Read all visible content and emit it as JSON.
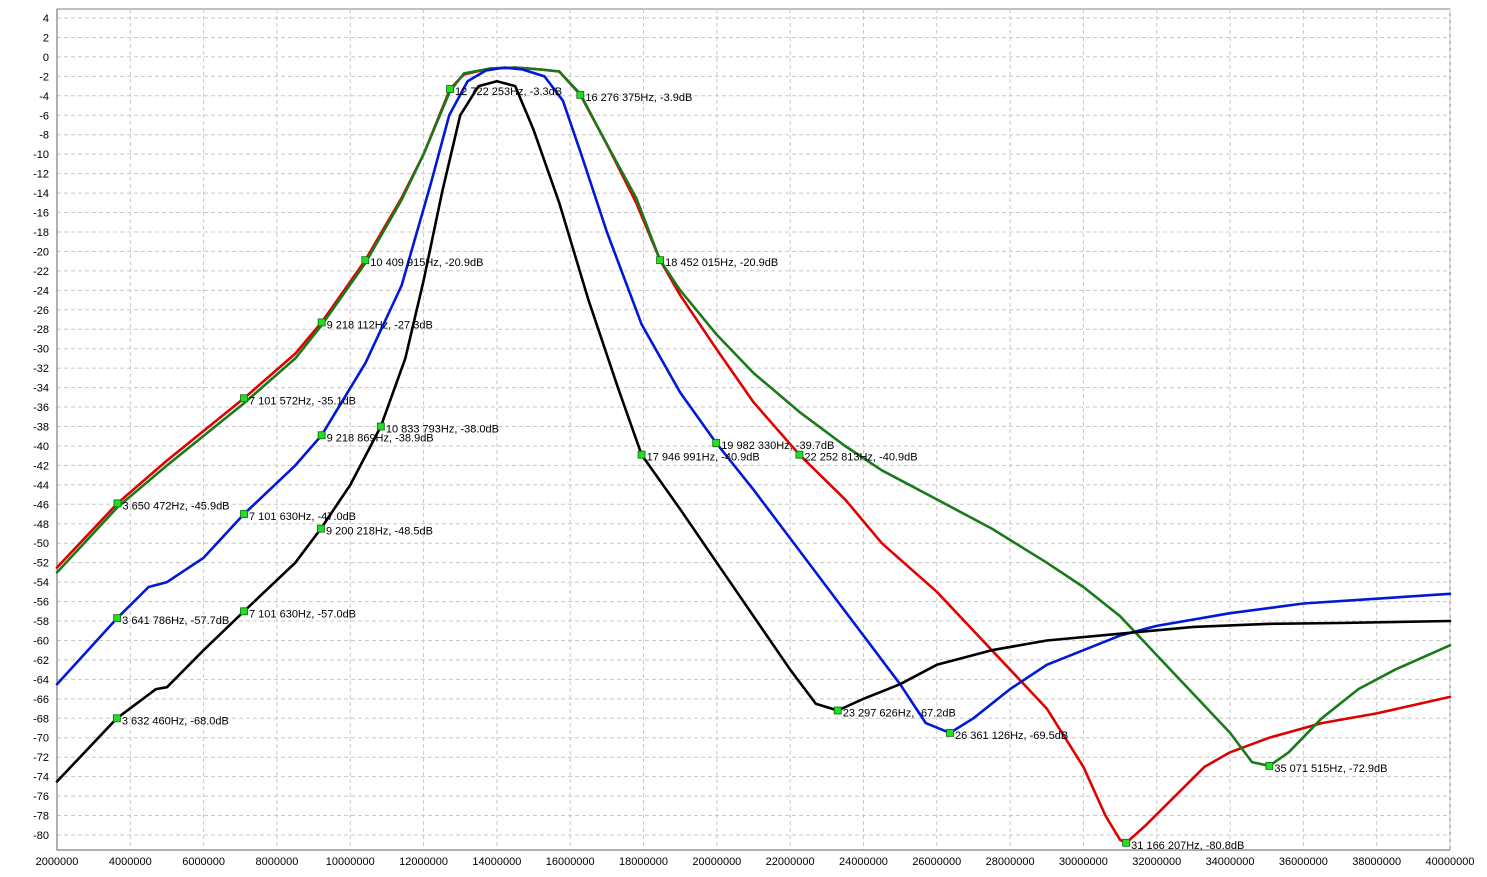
{
  "chart_data": {
    "type": "line",
    "xlim": [
      2000000,
      40000000
    ],
    "ylim": [
      -82,
      5
    ],
    "grid": true,
    "x_ticks": [
      2000000,
      4000000,
      6000000,
      8000000,
      10000000,
      12000000,
      14000000,
      16000000,
      18000000,
      20000000,
      22000000,
      24000000,
      26000000,
      28000000,
      30000000,
      32000000,
      34000000,
      36000000,
      38000000,
      40000000
    ],
    "y_ticks": [
      4,
      2,
      0,
      -2,
      -4,
      -6,
      -8,
      -10,
      -12,
      -14,
      -16,
      -18,
      -20,
      -22,
      -24,
      -26,
      -28,
      -30,
      -32,
      -34,
      -36,
      -38,
      -40,
      -42,
      -44,
      -46,
      -48,
      -50,
      -52,
      -54,
      -56,
      -58,
      -60,
      -62,
      -64,
      -66,
      -68,
      -70,
      -72,
      -74,
      -76,
      -78,
      -80
    ],
    "series": [
      {
        "color": "#e00000",
        "points": [
          [
            2000000,
            -52.5
          ],
          [
            3650472,
            -45.9
          ],
          [
            5000000,
            -41.5
          ],
          [
            7101572,
            -35.1
          ],
          [
            8500000,
            -30.5
          ],
          [
            9218112,
            -27.3
          ],
          [
            10409915,
            -20.9
          ],
          [
            11400000,
            -14.5
          ],
          [
            12000000,
            -10
          ],
          [
            12722253,
            -3.3
          ],
          [
            13100000,
            -1.8
          ],
          [
            13800000,
            -1.2
          ],
          [
            14500000,
            -1.1
          ],
          [
            15200000,
            -1.3
          ],
          [
            15700000,
            -1.5
          ],
          [
            16276375,
            -3.9
          ],
          [
            17000000,
            -9
          ],
          [
            17800000,
            -15
          ],
          [
            18452015,
            -20.9
          ],
          [
            19000000,
            -24.5
          ],
          [
            19982330,
            -30
          ],
          [
            21000000,
            -35.5
          ],
          [
            22252813,
            -40.9
          ],
          [
            23500000,
            -45.5
          ],
          [
            24500000,
            -50
          ],
          [
            26000000,
            -55
          ],
          [
            27500000,
            -61
          ],
          [
            29000000,
            -67
          ],
          [
            30000000,
            -73
          ],
          [
            30600000,
            -78
          ],
          [
            31000000,
            -80.5
          ],
          [
            31166207,
            -80.8
          ],
          [
            31700000,
            -79
          ],
          [
            32500000,
            -76
          ],
          [
            33300000,
            -73
          ],
          [
            34000000,
            -71.5
          ],
          [
            35071515,
            -70
          ],
          [
            36500000,
            -68.5
          ],
          [
            38000000,
            -67.5
          ],
          [
            40000000,
            -65.8
          ]
        ]
      },
      {
        "color": "#1a7a1a",
        "points": [
          [
            2000000,
            -53
          ],
          [
            3650472,
            -46.3
          ],
          [
            5000000,
            -42
          ],
          [
            7101572,
            -35.6
          ],
          [
            8500000,
            -31
          ],
          [
            9218112,
            -27.6
          ],
          [
            10409915,
            -21.2
          ],
          [
            11400000,
            -14.7
          ],
          [
            12000000,
            -10
          ],
          [
            12722253,
            -3.5
          ],
          [
            13100000,
            -1.7
          ],
          [
            13800000,
            -1.2
          ],
          [
            14500000,
            -1.1
          ],
          [
            15200000,
            -1.3
          ],
          [
            15700000,
            -1.5
          ],
          [
            16276375,
            -3.8
          ],
          [
            17000000,
            -9
          ],
          [
            17800000,
            -14.5
          ],
          [
            18452015,
            -20.9
          ],
          [
            19000000,
            -24
          ],
          [
            19982330,
            -28.5
          ],
          [
            21000000,
            -32.5
          ],
          [
            22252813,
            -36.5
          ],
          [
            23500000,
            -40
          ],
          [
            24500000,
            -42.5
          ],
          [
            26000000,
            -45.5
          ],
          [
            27500000,
            -48.5
          ],
          [
            29000000,
            -52
          ],
          [
            30000000,
            -54.5
          ],
          [
            31000000,
            -57.5
          ],
          [
            32000000,
            -61.5
          ],
          [
            33000000,
            -65.5
          ],
          [
            34000000,
            -69.5
          ],
          [
            34600000,
            -72.5
          ],
          [
            35071515,
            -72.9
          ],
          [
            35600000,
            -71.5
          ],
          [
            36500000,
            -68
          ],
          [
            37500000,
            -65
          ],
          [
            38500000,
            -63
          ],
          [
            40000000,
            -60.5
          ]
        ]
      },
      {
        "color": "#0018d8",
        "points": [
          [
            2000000,
            -64.5
          ],
          [
            3641786,
            -57.7
          ],
          [
            4500000,
            -54.5
          ],
          [
            5000000,
            -54
          ],
          [
            6000000,
            -51.5
          ],
          [
            7101630,
            -47
          ],
          [
            8500000,
            -42
          ],
          [
            9218869,
            -38.9
          ],
          [
            10409915,
            -31.5
          ],
          [
            11400000,
            -23.5
          ],
          [
            12200000,
            -13
          ],
          [
            12700000,
            -6
          ],
          [
            13200000,
            -2.5
          ],
          [
            13700000,
            -1.4
          ],
          [
            14200000,
            -1.1
          ],
          [
            14700000,
            -1.3
          ],
          [
            15300000,
            -2
          ],
          [
            15800000,
            -4.5
          ],
          [
            16300000,
            -10
          ],
          [
            17000000,
            -18
          ],
          [
            17946991,
            -27.5
          ],
          [
            19000000,
            -34.5
          ],
          [
            19982330,
            -39.7
          ],
          [
            21000000,
            -44.5
          ],
          [
            22000000,
            -49.5
          ],
          [
            23000000,
            -54.5
          ],
          [
            24000000,
            -59.5
          ],
          [
            25000000,
            -64.5
          ],
          [
            25700000,
            -68.5
          ],
          [
            26361126,
            -69.5
          ],
          [
            27000000,
            -68
          ],
          [
            28000000,
            -65
          ],
          [
            29000000,
            -62.5
          ],
          [
            30000000,
            -61
          ],
          [
            31000000,
            -59.5
          ],
          [
            32000000,
            -58.5
          ],
          [
            34000000,
            -57.2
          ],
          [
            36000000,
            -56.2
          ],
          [
            38000000,
            -55.7
          ],
          [
            40000000,
            -55.2
          ]
        ]
      },
      {
        "color": "#000000",
        "points": [
          [
            2000000,
            -74.5
          ],
          [
            3632460,
            -68
          ],
          [
            4700000,
            -65
          ],
          [
            5000000,
            -64.8
          ],
          [
            6000000,
            -61
          ],
          [
            7101630,
            -57
          ],
          [
            8500000,
            -52
          ],
          [
            9200218,
            -48.5
          ],
          [
            10000000,
            -44
          ],
          [
            10833793,
            -38
          ],
          [
            11500000,
            -31
          ],
          [
            12000000,
            -23
          ],
          [
            12500000,
            -14
          ],
          [
            13000000,
            -6
          ],
          [
            13500000,
            -3
          ],
          [
            14000000,
            -2.5
          ],
          [
            14500000,
            -3
          ],
          [
            15000000,
            -7.5
          ],
          [
            15700000,
            -15
          ],
          [
            16500000,
            -25
          ],
          [
            17300000,
            -34
          ],
          [
            17946991,
            -40.9
          ],
          [
            19000000,
            -46.5
          ],
          [
            20000000,
            -52
          ],
          [
            21000000,
            -57.5
          ],
          [
            22000000,
            -63
          ],
          [
            22700000,
            -66.5
          ],
          [
            23297626,
            -67.2
          ],
          [
            24000000,
            -66
          ],
          [
            25000000,
            -64.5
          ],
          [
            26000000,
            -62.5
          ],
          [
            27500000,
            -61
          ],
          [
            29000000,
            -60
          ],
          [
            31000000,
            -59.3
          ],
          [
            33000000,
            -58.6
          ],
          [
            35000000,
            -58.3
          ],
          [
            37000000,
            -58.2
          ],
          [
            40000000,
            -58
          ]
        ]
      }
    ],
    "markers": [
      {
        "x": 12722253,
        "y": -3.3,
        "label": "12 722 253Hz, -3.3dB"
      },
      {
        "x": 16276375,
        "y": -3.9,
        "label": "16 276 375Hz, -3.9dB"
      },
      {
        "x": 10409915,
        "y": -20.9,
        "label": "10 409 915Hz, -20.9dB"
      },
      {
        "x": 18452015,
        "y": -20.9,
        "label": "18 452 015Hz, -20.9dB"
      },
      {
        "x": 9218112,
        "y": -27.3,
        "label": "9 218 112Hz, -27.3dB"
      },
      {
        "x": 7101572,
        "y": -35.1,
        "label": "7 101 572Hz, -35.1dB"
      },
      {
        "x": 10833793,
        "y": -38.0,
        "label": "10 833 793Hz, -38.0dB"
      },
      {
        "x": 9218869,
        "y": -38.9,
        "label": "9 218 869Hz, -38.9dB"
      },
      {
        "x": 19982330,
        "y": -39.7,
        "label": "19 982 330Hz, -39.7dB"
      },
      {
        "x": 17946991,
        "y": -40.9,
        "label": "17 946 991Hz, -40.9dB"
      },
      {
        "x": 22252813,
        "y": -40.9,
        "label": "22 252 813Hz, -40.9dB"
      },
      {
        "x": 3650472,
        "y": -45.9,
        "label": "3 650 472Hz, -45.9dB"
      },
      {
        "x": 7101630,
        "y": -47.0,
        "label": "7 101 630Hz, -47.0dB"
      },
      {
        "x": 9200218,
        "y": -48.5,
        "label": "9 200 218Hz, -48.5dB"
      },
      {
        "x": 3641786,
        "y": -57.7,
        "label": "3 641 786Hz, -57.7dB"
      },
      {
        "x": 7101630,
        "y": -57.0,
        "label": "7 101 630Hz, -57.0dB"
      },
      {
        "x": 3632460,
        "y": -68.0,
        "label": "3 632 460Hz, -68.0dB"
      },
      {
        "x": 23297626,
        "y": -67.2,
        "label": "23 297 626Hz, -67.2dB"
      },
      {
        "x": 26361126,
        "y": -69.5,
        "label": "26 361 126Hz, -69.5dB"
      },
      {
        "x": 35071515,
        "y": -72.9,
        "label": "35 071 515Hz, -72.9dB"
      },
      {
        "x": 31166207,
        "y": -80.8,
        "label": "31 166 207Hz, -80.8dB"
      }
    ],
    "marker_color": "#22dd22"
  }
}
